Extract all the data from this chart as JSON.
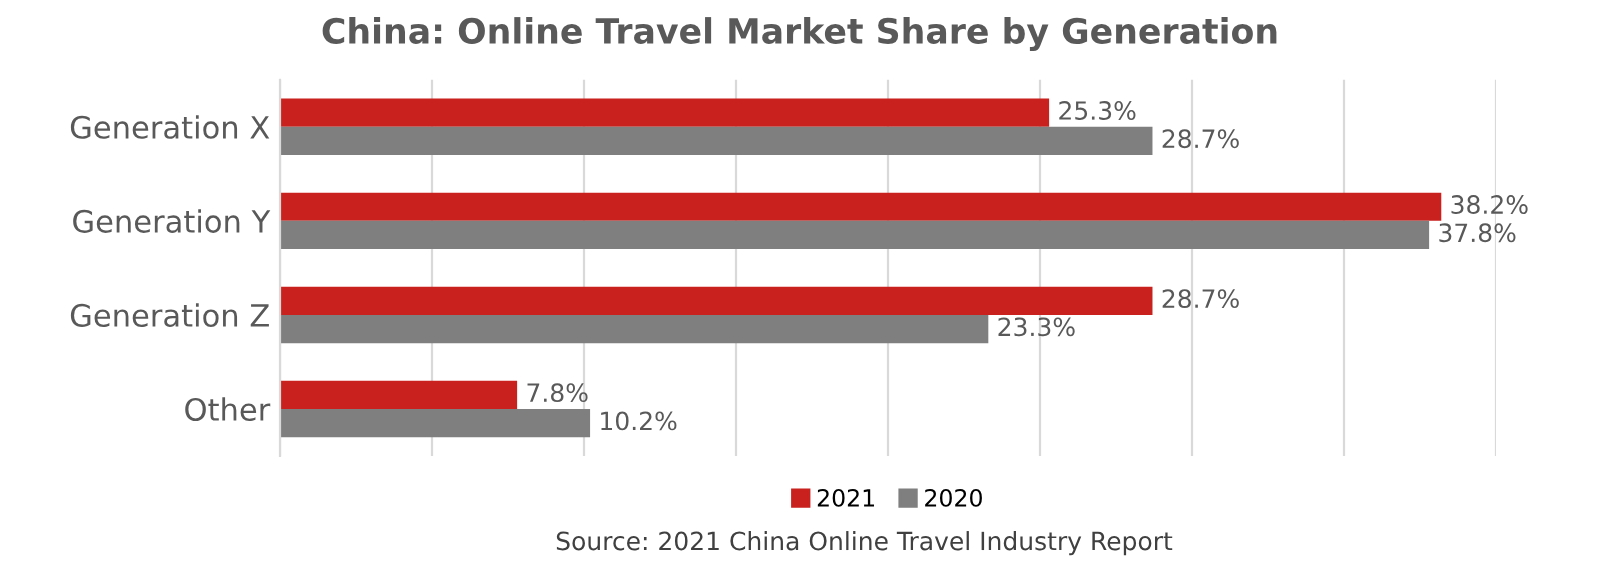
{
  "chart_data": {
    "type": "bar",
    "orientation": "horizontal",
    "title": "China: Online Travel Market Share by Generation",
    "categories": [
      "Generation X",
      "Generation Y",
      "Generation Z",
      "Other"
    ],
    "series": [
      {
        "name": "2021",
        "color": "#c9211e",
        "values": [
          25.3,
          38.2,
          28.7,
          7.8
        ],
        "value_labels": [
          "25.3%",
          "38.2%",
          "28.7%",
          "7.8%"
        ]
      },
      {
        "name": "2020",
        "color": "#7f7f7f",
        "values": [
          28.7,
          37.8,
          23.3,
          10.2
        ],
        "value_labels": [
          "28.7%",
          "37.8%",
          "23.3%",
          "10.2%"
        ]
      }
    ],
    "xlim": [
      0,
      40
    ],
    "xticks": [
      {
        "value": 0,
        "label": null
      },
      {
        "value": 5,
        "label": null
      },
      {
        "value": 10,
        "label": null
      },
      {
        "value": 15,
        "label": null
      },
      {
        "value": 20,
        "label": null
      },
      {
        "value": 25,
        "label": null
      },
      {
        "value": 30,
        "label": null
      },
      {
        "value": 35,
        "label": null
      },
      {
        "value": 40,
        "label": null
      }
    ],
    "tick_labels": "y",
    "grid": "x",
    "legend": "bottom",
    "annotations": [
      "Source: 2021 China Online Travel Industry Report"
    ]
  }
}
